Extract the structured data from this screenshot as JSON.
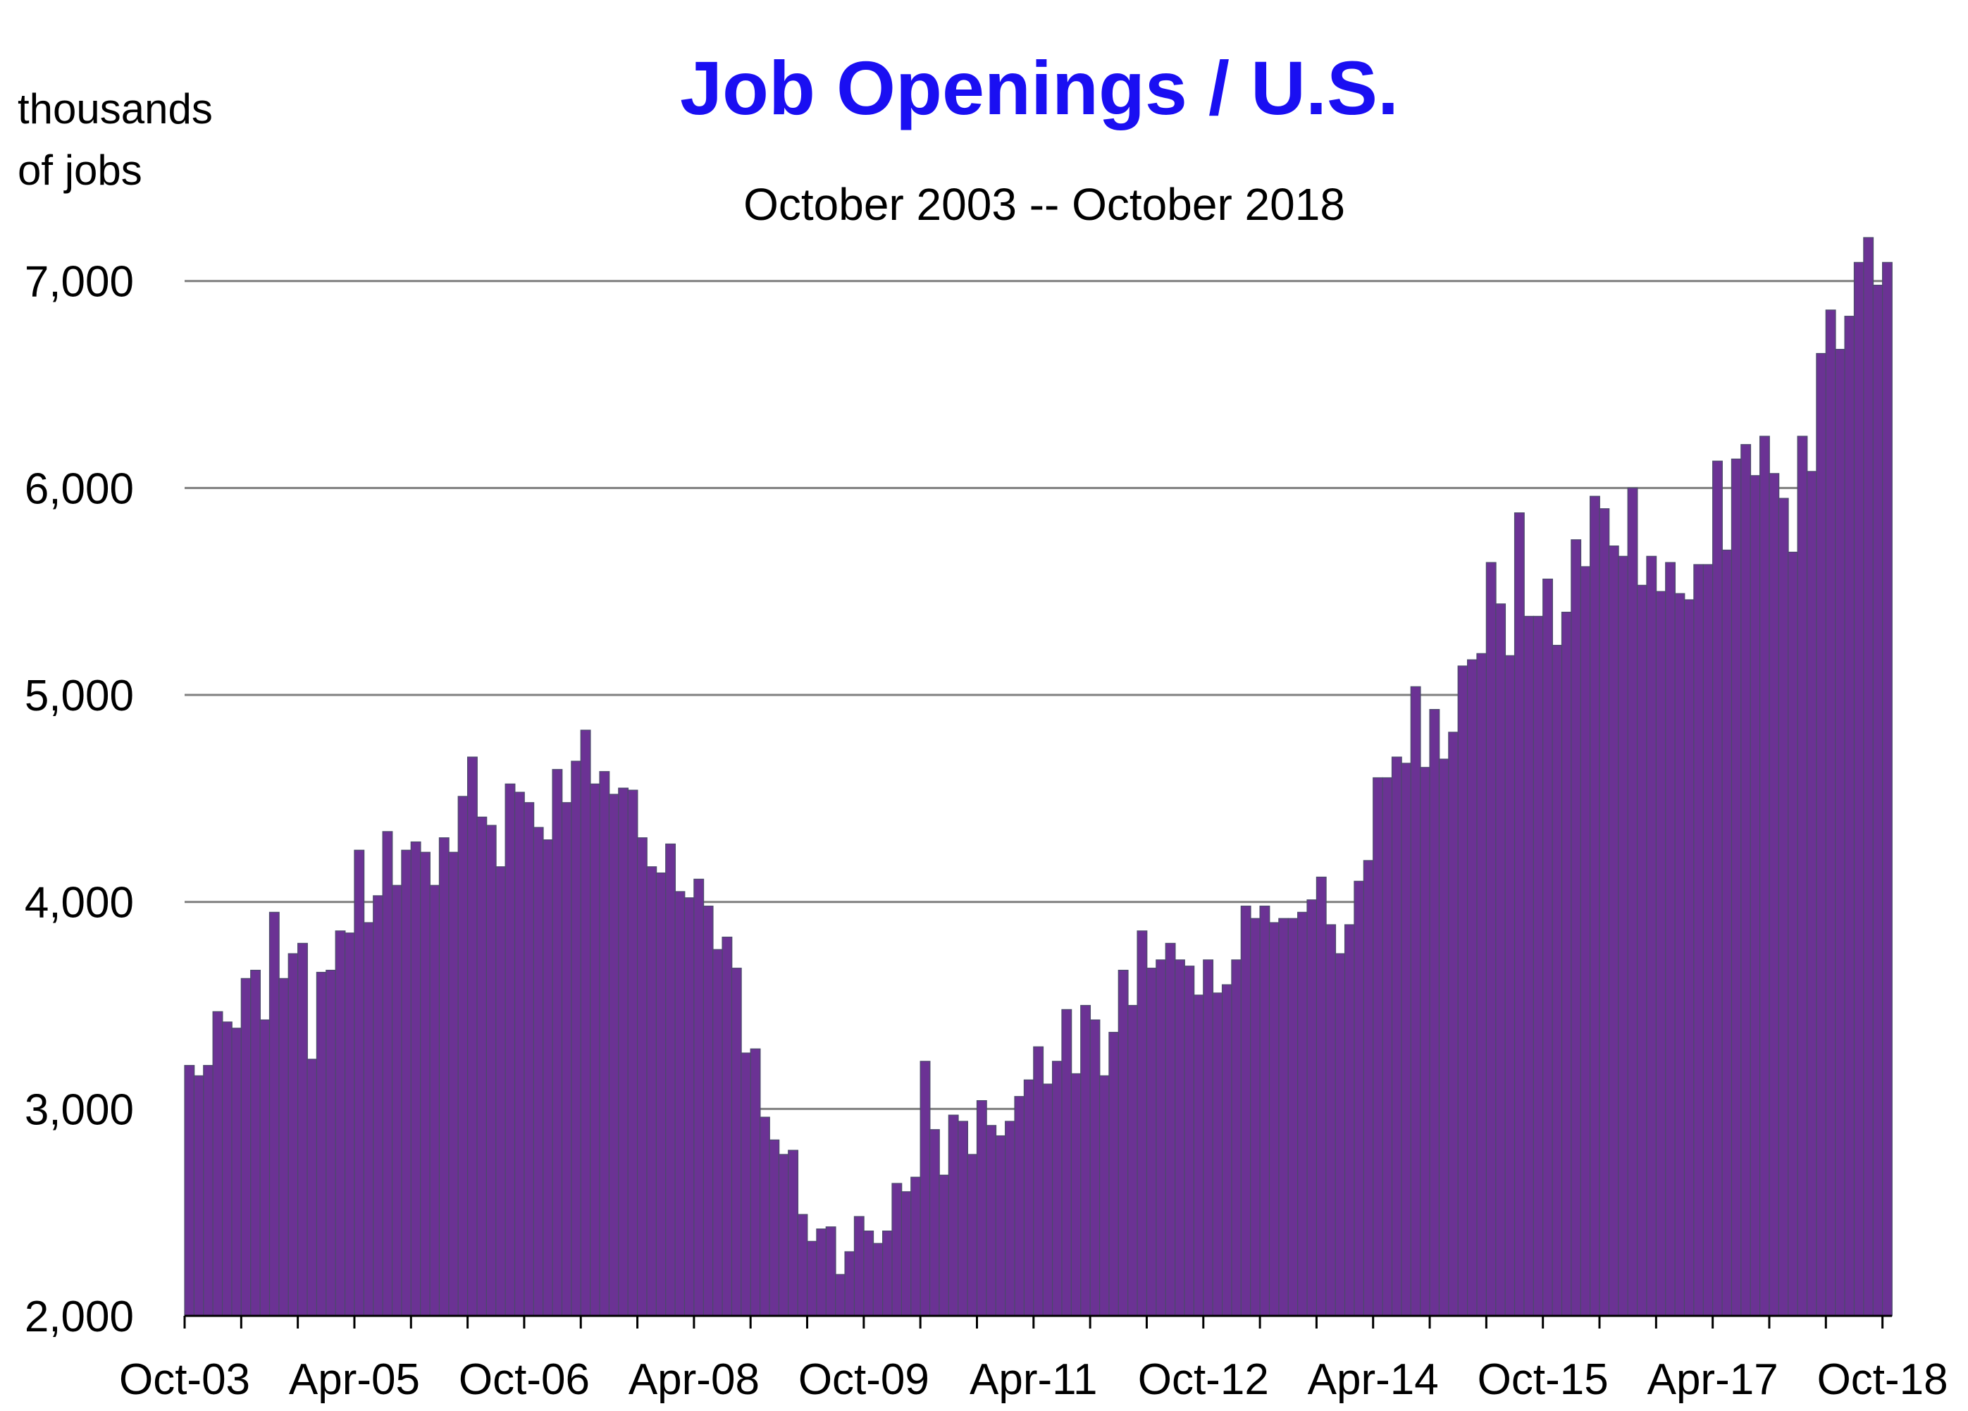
{
  "chart_data": {
    "type": "bar",
    "title": "Job Openings / U.S.",
    "subtitle": "October 2003 -- October 2018",
    "ylabel_line1": "thousands",
    "ylabel_line2": "of jobs",
    "ylim": [
      2000,
      7200
    ],
    "yticks": [
      2000,
      3000,
      4000,
      5000,
      6000,
      7000
    ],
    "ytick_labels": [
      "2,000",
      "3,000",
      "4,000",
      "5,000",
      "6,000",
      "7,000"
    ],
    "grid": "horizontal",
    "legend": "none",
    "x_start": "2003-10",
    "x_end": "2018-10",
    "xtick_labels": [
      "Oct-03",
      "Apr-05",
      "Oct-06",
      "Apr-08",
      "Oct-09",
      "Apr-11",
      "Oct-12",
      "Apr-14",
      "Oct-15",
      "Apr-17",
      "Oct-18"
    ],
    "xtick_positions": [
      "2003-10",
      "2005-04",
      "2006-10",
      "2008-04",
      "2009-10",
      "2011-04",
      "2012-10",
      "2014-04",
      "2015-10",
      "2017-04",
      "2018-10"
    ],
    "bar_color": "#6b3294",
    "values": [
      3210,
      3160,
      3210,
      3470,
      3420,
      3390,
      3630,
      3670,
      3430,
      3950,
      3630,
      3750,
      3800,
      3240,
      3660,
      3670,
      3860,
      3850,
      4250,
      3900,
      4030,
      4340,
      4080,
      4250,
      4290,
      4240,
      4080,
      4310,
      4240,
      4510,
      4700,
      4410,
      4370,
      4170,
      4570,
      4530,
      4480,
      4360,
      4300,
      4640,
      4480,
      4680,
      4830,
      4570,
      4630,
      4520,
      4550,
      4540,
      4310,
      4170,
      4140,
      4280,
      4050,
      4020,
      4110,
      3980,
      3770,
      3830,
      3680,
      3270,
      3290,
      2960,
      2850,
      2780,
      2800,
      2490,
      2360,
      2420,
      2430,
      2200,
      2310,
      2480,
      2410,
      2350,
      2410,
      2640,
      2600,
      2670,
      3230,
      2900,
      2680,
      2970,
      2940,
      2780,
      3040,
      2920,
      2870,
      2940,
      3060,
      3140,
      3300,
      3120,
      3230,
      3480,
      3170,
      3500,
      3430,
      3160,
      3370,
      3670,
      3500,
      3860,
      3680,
      3720,
      3800,
      3720,
      3690,
      3550,
      3720,
      3560,
      3600,
      3720,
      3980,
      3920,
      3980,
      3900,
      3920,
      3920,
      3950,
      4010,
      4120,
      3890,
      3750,
      3890,
      4100,
      4200,
      4600,
      4600,
      4700,
      4670,
      5040,
      4650,
      4930,
      4690,
      4820,
      5140,
      5170,
      5200,
      5640,
      5440,
      5190,
      5880,
      5380,
      5380,
      5560,
      5240,
      5400,
      5750,
      5620,
      5960,
      5900,
      5720,
      5670,
      6000,
      5530,
      5670,
      5500,
      5640,
      5490,
      5460,
      5630,
      5630,
      6130,
      5700,
      6140,
      6210,
      6060,
      6250,
      6070,
      5950,
      5690,
      6250,
      6080,
      6650,
      6860,
      6670,
      6830,
      7090,
      7210,
      6980,
      7090
    ]
  }
}
